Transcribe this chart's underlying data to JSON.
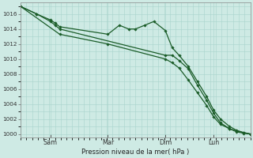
{
  "bg_color": "#ceeae4",
  "grid_color": "#a8d4cc",
  "line_color": "#1a5c28",
  "ylabel": "Pression niveau de la mer( hPa )",
  "ylim": [
    999.5,
    1017.5
  ],
  "yticks": [
    1000,
    1002,
    1004,
    1006,
    1008,
    1010,
    1012,
    1014,
    1016
  ],
  "xtick_labels": [
    "Sam",
    "Mar",
    "Dim",
    "Lun"
  ],
  "xtick_positions": [
    0.13,
    0.38,
    0.63,
    0.84
  ],
  "series1_x": [
    0.0,
    0.07,
    0.13,
    0.15,
    0.17,
    0.38,
    0.43,
    0.47,
    0.5,
    0.54,
    0.58,
    0.63,
    0.66,
    0.69,
    0.73,
    0.77,
    0.81,
    0.84,
    0.87,
    0.91,
    0.94,
    0.97,
    1.0
  ],
  "series1_y": [
    1017.0,
    1016.0,
    1015.2,
    1014.8,
    1014.3,
    1013.3,
    1014.5,
    1014.0,
    1014.0,
    1014.5,
    1015.0,
    1013.8,
    1011.5,
    1010.5,
    1009.0,
    1007.0,
    1005.0,
    1003.2,
    1002.0,
    1001.0,
    1000.5,
    1000.2,
    1000.0
  ],
  "series2_x": [
    0.0,
    0.07,
    0.13,
    0.15,
    0.17,
    0.63,
    0.66,
    0.69,
    0.73,
    0.77,
    0.81,
    0.84,
    0.87,
    0.91,
    0.94,
    0.97,
    1.0
  ],
  "series2_y": [
    1017.0,
    1016.0,
    1015.0,
    1014.5,
    1014.0,
    1010.5,
    1010.5,
    1009.8,
    1008.7,
    1006.5,
    1004.5,
    1002.8,
    1001.5,
    1000.7,
    1000.4,
    1000.2,
    1000.0
  ],
  "series3_x": [
    0.0,
    0.17,
    0.38,
    0.63,
    0.66,
    0.69,
    0.73,
    0.77,
    0.81,
    0.84,
    0.87,
    0.91,
    0.94,
    0.97,
    1.0
  ],
  "series3_y": [
    1017.0,
    1013.3,
    1012.0,
    1010.0,
    1009.5,
    1008.8,
    1007.2,
    1005.5,
    1003.8,
    1002.3,
    1001.3,
    1000.7,
    1000.3,
    1000.1,
    1000.0
  ]
}
